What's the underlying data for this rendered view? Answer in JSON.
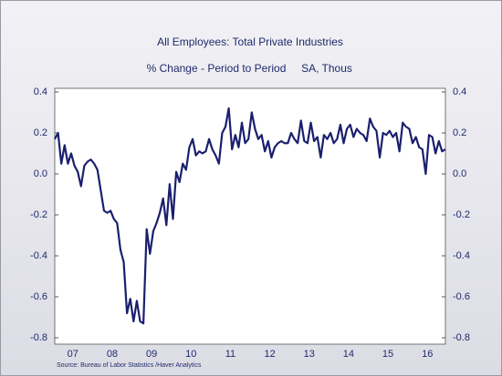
{
  "chart_data": {
    "type": "line",
    "title": "All Employees: Total Private Industries",
    "subtitle": "% Change - Period to Period",
    "subtitle2": "SA, Thous",
    "source": "Source:  Bureau of Labor Statistics /Haver Analytics",
    "color": "#1a1f6e",
    "x": [
      0,
      1,
      2,
      3,
      4,
      5,
      6,
      7,
      8,
      9,
      10,
      11,
      12,
      13,
      14,
      15,
      16,
      17,
      18,
      19,
      20,
      21,
      22,
      23,
      24,
      25,
      26,
      27,
      28,
      29,
      30,
      31,
      32,
      33,
      34,
      35,
      36,
      37,
      38,
      39,
      40,
      41,
      42,
      43,
      44,
      45,
      46,
      47,
      48,
      49,
      50,
      51,
      52,
      53,
      54,
      55,
      56,
      57,
      58,
      59,
      60,
      61,
      62,
      63,
      64,
      65,
      66,
      67,
      68,
      69,
      70,
      71,
      72,
      73,
      74,
      75,
      76,
      77,
      78,
      79,
      80,
      81,
      82,
      83,
      84,
      85,
      86,
      87,
      88,
      89,
      90,
      91,
      92,
      93,
      94,
      95,
      96,
      97,
      98,
      99,
      100,
      101,
      102,
      103,
      104,
      105,
      106,
      107,
      108,
      109,
      110,
      111,
      112,
      113,
      114,
      115,
      116,
      117,
      118,
      119
    ],
    "values": [
      0.17,
      0.2,
      0.05,
      0.14,
      0.05,
      0.1,
      0.04,
      0.01,
      -0.06,
      0.04,
      0.06,
      0.07,
      0.05,
      0.02,
      -0.08,
      -0.18,
      -0.19,
      -0.18,
      -0.22,
      -0.24,
      -0.37,
      -0.43,
      -0.68,
      -0.61,
      -0.72,
      -0.62,
      -0.72,
      -0.73,
      -0.27,
      -0.39,
      -0.28,
      -0.24,
      -0.19,
      -0.12,
      -0.25,
      -0.05,
      -0.22,
      0.01,
      -0.04,
      0.05,
      0.02,
      0.13,
      0.17,
      0.09,
      0.11,
      0.1,
      0.11,
      0.17,
      0.12,
      0.09,
      0.05,
      0.2,
      0.23,
      0.32,
      0.12,
      0.19,
      0.13,
      0.25,
      0.15,
      0.17,
      0.3,
      0.22,
      0.17,
      0.19,
      0.11,
      0.16,
      0.08,
      0.13,
      0.15,
      0.16,
      0.15,
      0.15,
      0.2,
      0.17,
      0.15,
      0.26,
      0.16,
      0.15,
      0.25,
      0.16,
      0.18,
      0.08,
      0.19,
      0.17,
      0.2,
      0.15,
      0.17,
      0.24,
      0.15,
      0.22,
      0.24,
      0.18,
      0.22,
      0.2,
      0.19,
      0.16,
      0.27,
      0.23,
      0.21,
      0.08,
      0.2,
      0.19,
      0.21,
      0.18,
      0.2,
      0.11,
      0.25,
      0.23,
      0.22,
      0.15,
      0.18,
      0.13,
      0.12,
      0.0,
      0.19,
      0.18,
      0.1,
      0.16,
      0.11,
      0.12
    ],
    "xlim": [
      0,
      119
    ],
    "xticks": [
      {
        "value": 5.5,
        "label": "07"
      },
      {
        "value": 17.5,
        "label": "08"
      },
      {
        "value": 29.5,
        "label": "09"
      },
      {
        "value": 41.5,
        "label": "10"
      },
      {
        "value": 53.5,
        "label": "11"
      },
      {
        "value": 65.5,
        "label": "12"
      },
      {
        "value": 77.5,
        "label": "13"
      },
      {
        "value": 89.5,
        "label": "14"
      },
      {
        "value": 101.5,
        "label": "15"
      },
      {
        "value": 113.5,
        "label": "16"
      }
    ],
    "ylim": [
      -0.8,
      0.4
    ],
    "yticks": [
      0.4,
      0.2,
      {
        "value": 0,
        "label": "0.0"
      },
      -0.2,
      -0.4,
      -0.6,
      -0.8
    ],
    "y2lim": [
      -0.8,
      0.4
    ],
    "y2ticks": [
      0.4,
      0.2,
      {
        "value": 0,
        "label": "0.0"
      },
      -0.2,
      -0.4,
      -0.6,
      -0.8
    ]
  }
}
